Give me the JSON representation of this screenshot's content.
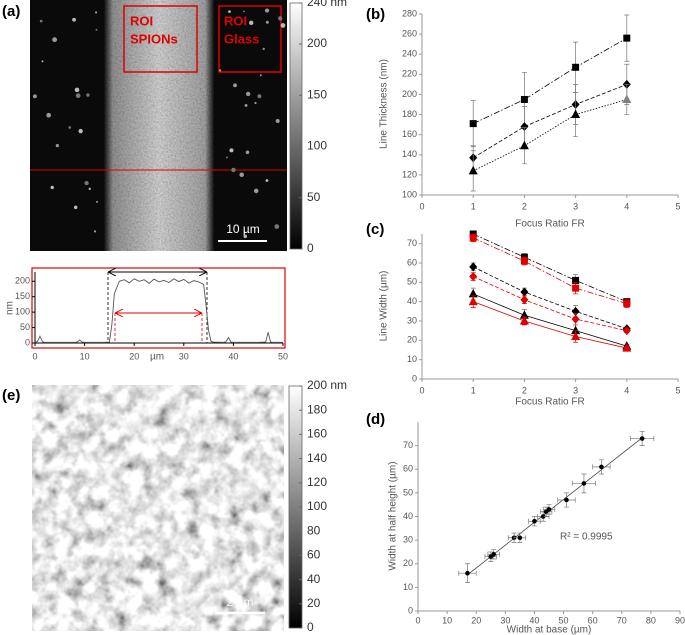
{
  "panels": {
    "a": "(a)",
    "b": "(b)",
    "c": "(c)",
    "d": "(d)",
    "e": "(e)"
  },
  "image_a": {
    "roi_spions": [
      "ROI",
      "SPIONs"
    ],
    "roi_glass": [
      "ROI",
      "Glass"
    ],
    "scale_bar": "10 µm"
  },
  "image_e": {
    "scale_bar": "2 µm"
  },
  "chart_data": [
    {
      "type": "colorbar",
      "ylim": [
        0,
        240
      ],
      "yticks": [
        0,
        50,
        100,
        150,
        200,
        {
          "value": 240,
          "label": "240 nm"
        }
      ]
    },
    {
      "type": "line",
      "xlabel": "µm",
      "ylabel": "nm",
      "x": [
        0,
        0.5,
        1,
        1.5,
        2,
        5,
        8,
        8.5,
        9,
        9.5,
        10,
        14,
        15,
        15.5,
        16,
        17,
        18,
        19,
        20,
        21,
        22,
        23,
        24,
        25,
        26,
        27,
        28,
        29,
        30,
        31,
        32,
        33,
        34,
        34.5,
        35,
        35.5,
        36,
        38,
        38.5,
        39,
        39.5,
        40,
        45,
        46.5,
        47,
        47.5,
        48,
        50
      ],
      "series": [
        {
          "color": "#555555",
          "values": [
            2,
            5,
            22,
            4,
            2,
            2,
            2,
            3,
            10,
            3,
            2,
            2,
            3,
            60,
            160,
            200,
            205,
            195,
            208,
            200,
            205,
            193,
            207,
            198,
            203,
            196,
            208,
            199,
            206,
            194,
            202,
            198,
            190,
            120,
            40,
            5,
            3,
            2,
            4,
            18,
            3,
            2,
            2,
            3,
            35,
            3,
            2,
            2
          ]
        }
      ],
      "xlim": [
        0,
        50
      ],
      "xticks": [
        0,
        10,
        20,
        30,
        40,
        50
      ],
      "ylim": [
        0,
        230
      ],
      "yticks": [
        0,
        50,
        100,
        150,
        200
      ]
    },
    {
      "type": "line",
      "xlabel": "Focus Ratio FR",
      "ylabel": "Line Thickness (nm)",
      "x": [
        1,
        2,
        3,
        4
      ],
      "series": [
        {
          "marker": "square",
          "line_style": "dashdot",
          "color": "#000000",
          "values": [
            171,
            195,
            227,
            256
          ],
          "errors": [
            23,
            27,
            25,
            23
          ]
        },
        {
          "marker": "diamond",
          "line_style": "dashed",
          "color": "#000000",
          "values": [
            137,
            168,
            190,
            210
          ],
          "errors": [
            12,
            20,
            20,
            20
          ]
        },
        {
          "marker": "triangle",
          "line_style": "dotted",
          "color": "#000000",
          "values": [
            124,
            149,
            180,
            195
          ],
          "errors": [
            20,
            18,
            22,
            15
          ],
          "marker_colors": [
            "#000000",
            "#000000",
            "#000000",
            "#808080"
          ]
        }
      ],
      "xlim": [
        0,
        5
      ],
      "xticks": [
        0,
        1,
        2,
        3,
        4,
        5
      ],
      "ylim": [
        100,
        280
      ],
      "yticks": [
        100,
        120,
        140,
        160,
        180,
        200,
        220,
        240,
        260,
        280
      ]
    },
    {
      "type": "line",
      "xlabel": "Focus Ratio FR",
      "ylabel": "Line Width (µm)",
      "x": [
        1,
        2,
        3,
        4
      ],
      "series": [
        {
          "marker": "square",
          "line_style": "dashdot",
          "color": "#000000",
          "values": [
            75,
            63,
            51,
            40
          ],
          "errors": [
            1,
            2,
            3,
            1
          ]
        },
        {
          "marker": "square",
          "line_style": "dashdot",
          "color": "#e00000",
          "values": [
            73,
            61,
            47,
            39
          ],
          "errors": [
            2,
            2,
            3,
            2
          ]
        },
        {
          "marker": "diamond",
          "line_style": "dashed",
          "color": "#000000",
          "values": [
            58,
            45,
            35,
            26
          ],
          "errors": [
            2,
            2,
            3,
            1
          ]
        },
        {
          "marker": "diamond",
          "line_style": "dashed",
          "color": "#e00000",
          "values": [
            53,
            41,
            31,
            25
          ],
          "errors": [
            2,
            2,
            3,
            1
          ]
        },
        {
          "marker": "triangle",
          "line_style": "solid",
          "color": "#000000",
          "values": [
            44,
            33,
            25,
            17
          ],
          "errors": [
            3,
            3,
            3,
            1
          ]
        },
        {
          "marker": "triangle",
          "line_style": "solid",
          "color": "#e00000",
          "values": [
            40,
            30,
            22,
            16
          ],
          "errors": [
            3,
            2,
            3,
            1
          ]
        }
      ],
      "xlim": [
        0,
        5
      ],
      "xticks": [
        0,
        1,
        2,
        3,
        4,
        5
      ],
      "ylim": [
        0,
        75
      ],
      "yticks": [
        0,
        10,
        20,
        30,
        40,
        50,
        60,
        70
      ]
    },
    {
      "type": "scatter",
      "xlabel": "Width at base (µm)",
      "ylabel": "Width at half height (µm)",
      "annotation": "R² = 0.9995",
      "trendline": true,
      "x": [
        17,
        25,
        26,
        33,
        35,
        40,
        43,
        44,
        45,
        51,
        57,
        63,
        77
      ],
      "series": [
        {
          "marker": "circle",
          "color": "#000000",
          "values": [
            16,
            23,
            24,
            31,
            31,
            38,
            40,
            42,
            43,
            47,
            54,
            61,
            73
          ],
          "xerrors": [
            3,
            2,
            2,
            2,
            2,
            2,
            2,
            2,
            2,
            3,
            4,
            3,
            4
          ],
          "errors": [
            4,
            2,
            2,
            2,
            2,
            2,
            2,
            2,
            2,
            3,
            4,
            3,
            3
          ]
        }
      ],
      "xlim": [
        0,
        90
      ],
      "xticks": [
        0,
        10,
        20,
        30,
        40,
        50,
        60,
        70,
        80,
        90
      ],
      "ylim": [
        0,
        80
      ],
      "yticks": [
        0,
        10,
        20,
        30,
        40,
        50,
        60,
        70
      ]
    },
    {
      "type": "colorbar",
      "ylim": [
        0,
        200
      ],
      "yticks": [
        0,
        20,
        40,
        60,
        80,
        100,
        120,
        140,
        160,
        180,
        {
          "value": 200,
          "label": "200 nm"
        }
      ]
    }
  ]
}
